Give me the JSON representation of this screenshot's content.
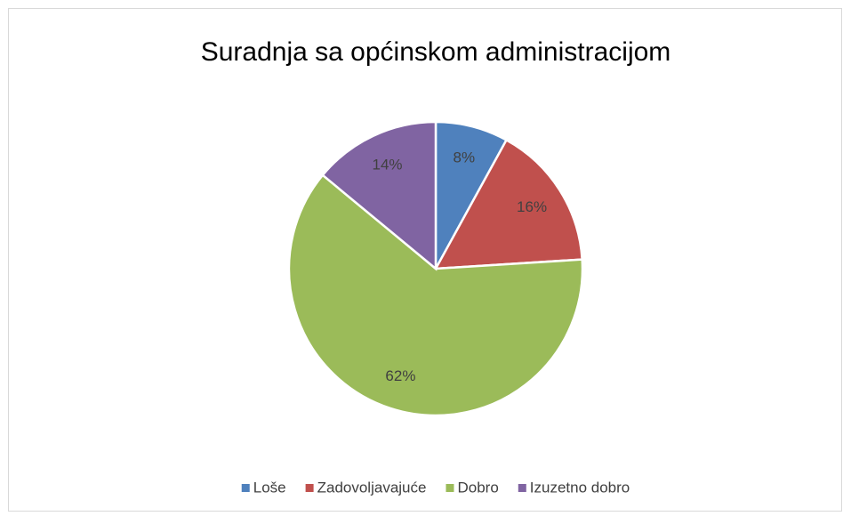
{
  "chart_data": {
    "type": "pie",
    "title": "Suradnja sa općinskom administracijom",
    "categories": [
      "Loše",
      "Zadovoljavajuće",
      "Dobro",
      "Izuzetno dobro"
    ],
    "values": [
      8,
      16,
      62,
      14
    ],
    "value_labels": [
      "8%",
      "16%",
      "62%",
      "14%"
    ],
    "colors": [
      "#4f81bd",
      "#c0504d",
      "#9bbb59",
      "#8064a2"
    ],
    "legend": "bottom"
  }
}
